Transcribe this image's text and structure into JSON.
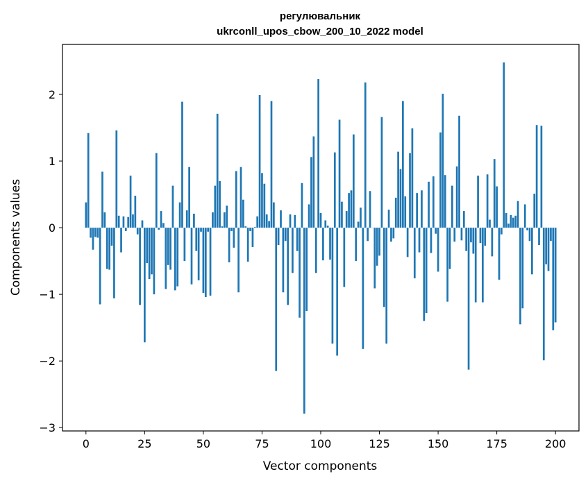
{
  "chart_data": {
    "type": "bar",
    "title_line1": "регулювальник",
    "title_line2": "ukrconll_upos_cbow_200_10_2022 model",
    "xlabel": "Vector components",
    "ylabel": "Components values",
    "xlim": [
      -10,
      210
    ],
    "ylim": [
      -3.05,
      2.75
    ],
    "xticks": [
      0,
      25,
      50,
      75,
      100,
      125,
      150,
      175,
      200
    ],
    "yticks": [
      -3,
      -2,
      -1,
      0,
      1,
      2
    ],
    "ytick_labels": [
      "−3",
      "−2",
      "−1",
      "0",
      "1",
      "2"
    ],
    "bar_color": "#1f77b4",
    "grid": false,
    "values": [
      0.38,
      1.42,
      -0.15,
      -0.33,
      -0.14,
      -0.15,
      -1.15,
      0.84,
      0.23,
      -0.62,
      -0.63,
      -0.27,
      -1.06,
      1.46,
      0.18,
      -0.37,
      0.17,
      -0.05,
      0.16,
      0.78,
      0.2,
      0.48,
      -0.1,
      -1.16,
      0.11,
      -1.72,
      -0.53,
      -0.77,
      -0.7,
      -1.0,
      1.12,
      -0.03,
      0.25,
      0.07,
      -0.92,
      -0.56,
      -0.63,
      0.63,
      -0.94,
      -0.88,
      0.38,
      1.89,
      -0.5,
      0.26,
      0.91,
      -0.85,
      0.21,
      -0.35,
      -0.79,
      -0.06,
      -0.98,
      -1.04,
      -0.06,
      -1.02,
      0.23,
      0.63,
      1.71,
      0.7,
      0.02,
      0.23,
      0.33,
      -0.52,
      -0.05,
      -0.3,
      0.85,
      -0.97,
      0.91,
      0.42,
      0.02,
      -0.51,
      -0.05,
      -0.29,
      0.01,
      0.17,
      1.99,
      0.82,
      0.66,
      0.2,
      0.1,
      1.9,
      0.38,
      -2.15,
      -0.26,
      0.26,
      -0.97,
      -0.2,
      -1.16,
      0.2,
      -0.68,
      0.19,
      -0.35,
      -1.35,
      0.67,
      -2.79,
      -1.25,
      0.35,
      1.06,
      1.37,
      -0.68,
      2.23,
      0.22,
      -0.49,
      0.11,
      0.03,
      -0.48,
      -1.74,
      1.13,
      -1.92,
      1.62,
      0.39,
      -0.89,
      0.25,
      0.52,
      0.56,
      1.4,
      -0.5,
      0.09,
      0.3,
      -1.82,
      2.18,
      -0.2,
      0.55,
      0.0,
      -0.91,
      -0.57,
      -0.42,
      1.66,
      -1.19,
      -1.74,
      0.27,
      -0.21,
      -0.16,
      0.45,
      1.14,
      0.88,
      1.9,
      0.47,
      -0.44,
      1.12,
      1.49,
      -0.76,
      0.52,
      -0.37,
      0.56,
      -1.4,
      -1.28,
      0.69,
      -0.38,
      0.77,
      -0.09,
      -0.66,
      1.43,
      2.01,
      0.79,
      -1.11,
      -0.62,
      0.63,
      -0.21,
      0.92,
      1.68,
      -0.19,
      0.25,
      -0.35,
      -2.13,
      -0.22,
      -0.39,
      -1.12,
      0.78,
      -0.23,
      -1.12,
      -0.27,
      0.8,
      0.12,
      -0.43,
      1.03,
      0.62,
      -0.78,
      -0.1,
      2.48,
      0.22,
      0.06,
      0.19,
      0.15,
      0.18,
      0.4,
      -1.45,
      -1.21,
      0.35,
      -0.04,
      -0.2,
      -0.7,
      0.51,
      1.54,
      -0.26,
      1.53,
      -1.99,
      -0.55,
      -0.65,
      -0.2,
      -1.54,
      -1.42
    ]
  }
}
